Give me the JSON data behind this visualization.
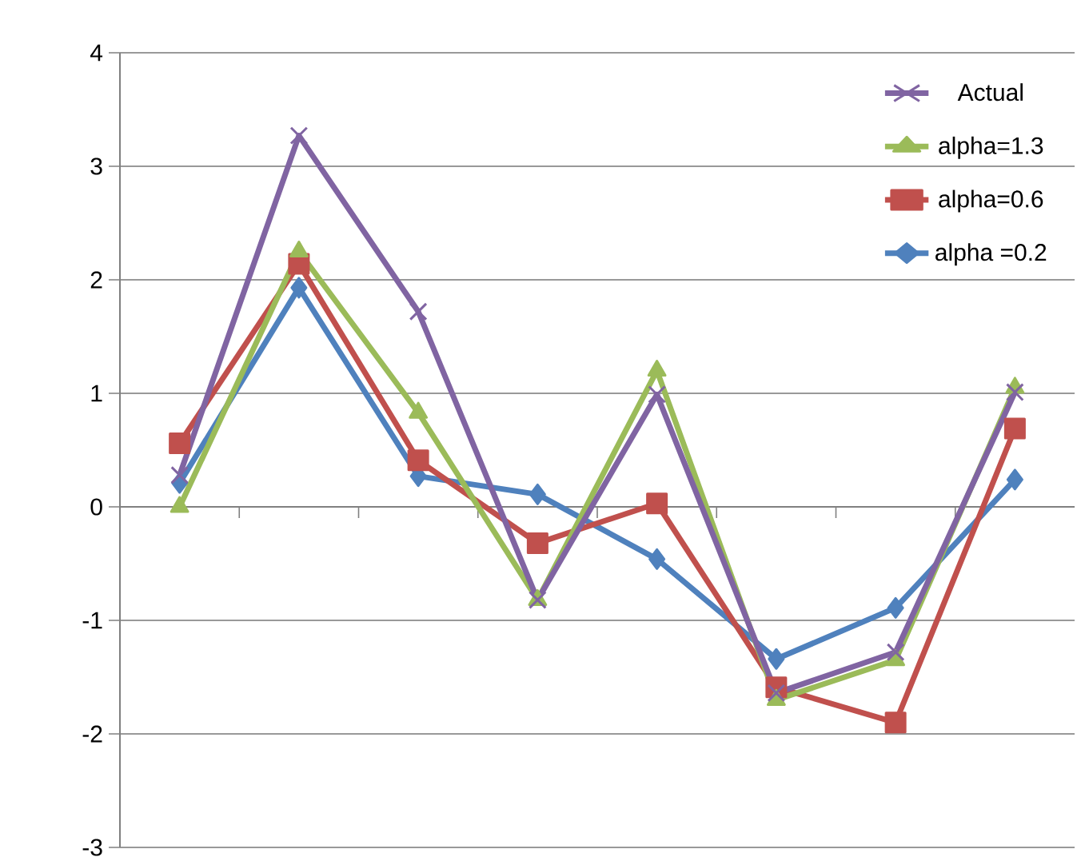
{
  "chart_data": {
    "type": "line",
    "categories": [
      null,
      null,
      null,
      null,
      null,
      null,
      null,
      null
    ],
    "ylim": [
      -3,
      4
    ],
    "yticks": [
      -3,
      -2,
      -1,
      0,
      1,
      2,
      3,
      4
    ],
    "grid": "y",
    "legend": "top right",
    "tick_labels": "y",
    "series": [
      {
        "name": "Actual",
        "color": "#8064a2",
        "marker": "cross",
        "values": [
          0.28,
          3.27,
          1.72,
          -0.82,
          0.99,
          -1.64,
          -1.28,
          1.01
        ]
      },
      {
        "name": "alpha=1.3",
        "color": "#9bbb59",
        "marker": "triangle",
        "values": [
          0.0,
          2.25,
          0.83,
          -0.82,
          1.2,
          -1.7,
          -1.35,
          1.05
        ]
      },
      {
        "name": "alpha=0.6",
        "color": "#c0504d",
        "marker": "square",
        "values": [
          0.56,
          2.14,
          0.41,
          -0.32,
          0.03,
          -1.59,
          -1.9,
          0.69
        ]
      },
      {
        "name": "alpha =0.2",
        "color": "#4f81bd",
        "marker": "diamond",
        "values": [
          0.21,
          1.93,
          0.27,
          0.11,
          -0.46,
          -1.34,
          -0.89,
          0.24
        ]
      }
    ]
  }
}
